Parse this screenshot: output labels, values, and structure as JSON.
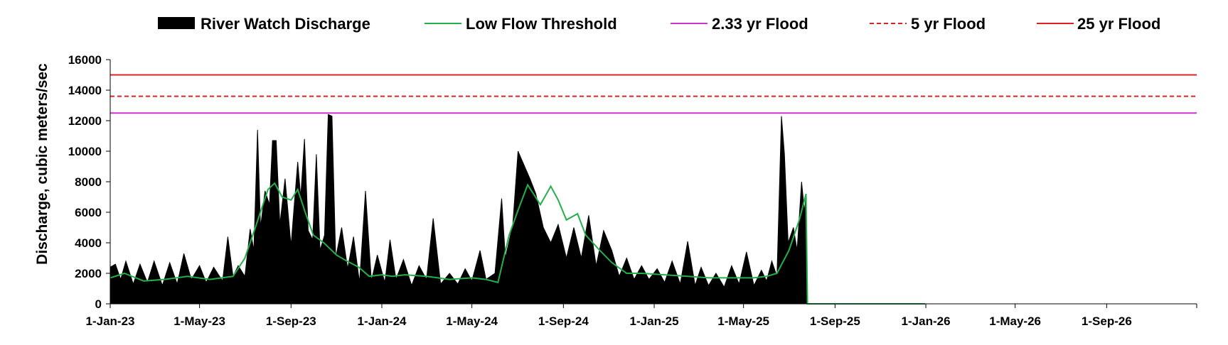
{
  "chart_data": {
    "type": "area",
    "title": "",
    "xlabel": "",
    "ylabel": "Discharge, cubic meters/sec",
    "ylim": [
      0,
      16000
    ],
    "yticks": [
      0,
      2000,
      4000,
      6000,
      8000,
      10000,
      12000,
      14000,
      16000
    ],
    "ytick_labels": [
      "0",
      "2000",
      "4000",
      "6000",
      "8000",
      "10000",
      "12000",
      "14000",
      "16000"
    ],
    "xlim": [
      "2023-01-01",
      "2026-12-31"
    ],
    "xticks": [
      "2023-01-01",
      "2023-05-01",
      "2023-09-01",
      "2024-01-01",
      "2024-05-01",
      "2024-09-01",
      "2025-01-01",
      "2025-05-01",
      "2025-09-01",
      "2026-01-01",
      "2026-05-01",
      "2026-09-01"
    ],
    "xtick_labels": [
      "1-Jan-23",
      "1-May-23",
      "1-Sep-23",
      "1-Jan-24",
      "1-May-24",
      "1-Sep-24",
      "1-Jan-25",
      "1-May-25",
      "1-Sep-25",
      "1-Jan-26",
      "1-May-26",
      "1-Sep-26"
    ],
    "grid": false,
    "legend_position": "top",
    "series": [
      {
        "name": "River Watch Discharge",
        "kind": "area",
        "color": "#000000",
        "points": [
          [
            "2023-01-01",
            2400
          ],
          [
            "2023-01-08",
            2600
          ],
          [
            "2023-01-15",
            1600
          ],
          [
            "2023-01-22",
            2800
          ],
          [
            "2023-02-01",
            1300
          ],
          [
            "2023-02-10",
            2600
          ],
          [
            "2023-02-20",
            1400
          ],
          [
            "2023-03-01",
            2800
          ],
          [
            "2023-03-12",
            1200
          ],
          [
            "2023-03-22",
            2700
          ],
          [
            "2023-04-01",
            1300
          ],
          [
            "2023-04-10",
            3300
          ],
          [
            "2023-04-20",
            1600
          ],
          [
            "2023-05-01",
            2500
          ],
          [
            "2023-05-10",
            1400
          ],
          [
            "2023-05-20",
            2400
          ],
          [
            "2023-06-01",
            1500
          ],
          [
            "2023-06-08",
            4400
          ],
          [
            "2023-06-15",
            1800
          ],
          [
            "2023-06-22",
            2500
          ],
          [
            "2023-07-01",
            1800
          ],
          [
            "2023-07-08",
            4900
          ],
          [
            "2023-07-13",
            3500
          ],
          [
            "2023-07-18",
            11400
          ],
          [
            "2023-07-22",
            5000
          ],
          [
            "2023-07-28",
            7400
          ],
          [
            "2023-08-03",
            6500
          ],
          [
            "2023-08-07",
            10700
          ],
          [
            "2023-08-12",
            10700
          ],
          [
            "2023-08-17",
            5200
          ],
          [
            "2023-08-24",
            8200
          ],
          [
            "2023-09-01",
            3800
          ],
          [
            "2023-09-05",
            6300
          ],
          [
            "2023-09-10",
            9300
          ],
          [
            "2023-09-14",
            7000
          ],
          [
            "2023-09-19",
            10800
          ],
          [
            "2023-09-24",
            4800
          ],
          [
            "2023-09-30",
            4200
          ],
          [
            "2023-10-05",
            9800
          ],
          [
            "2023-10-10",
            3500
          ],
          [
            "2023-10-16",
            4500
          ],
          [
            "2023-10-21",
            12400
          ],
          [
            "2023-10-26",
            12300
          ],
          [
            "2023-10-31",
            3000
          ],
          [
            "2023-11-08",
            5000
          ],
          [
            "2023-11-16",
            2300
          ],
          [
            "2023-11-24",
            4400
          ],
          [
            "2023-12-02",
            1400
          ],
          [
            "2023-12-10",
            7400
          ],
          [
            "2023-12-18",
            1500
          ],
          [
            "2023-12-26",
            3200
          ],
          [
            "2024-01-05",
            1400
          ],
          [
            "2024-01-12",
            4200
          ],
          [
            "2024-01-20",
            1600
          ],
          [
            "2024-01-30",
            2900
          ],
          [
            "2024-02-10",
            1200
          ],
          [
            "2024-02-20",
            2500
          ],
          [
            "2024-03-01",
            1600
          ],
          [
            "2024-03-10",
            5600
          ],
          [
            "2024-03-20",
            1300
          ],
          [
            "2024-04-01",
            2000
          ],
          [
            "2024-04-12",
            1300
          ],
          [
            "2024-04-22",
            2300
          ],
          [
            "2024-05-01",
            1500
          ],
          [
            "2024-05-12",
            3500
          ],
          [
            "2024-05-20",
            1600
          ],
          [
            "2024-06-01",
            2000
          ],
          [
            "2024-06-10",
            6900
          ],
          [
            "2024-06-15",
            3000
          ],
          [
            "2024-06-25",
            5200
          ],
          [
            "2024-07-02",
            10000
          ],
          [
            "2024-07-10",
            9100
          ],
          [
            "2024-07-18",
            8200
          ],
          [
            "2024-07-26",
            7200
          ],
          [
            "2024-08-05",
            5000
          ],
          [
            "2024-08-15",
            4000
          ],
          [
            "2024-08-25",
            5200
          ],
          [
            "2024-09-05",
            3000
          ],
          [
            "2024-09-15",
            5000
          ],
          [
            "2024-09-25",
            3000
          ],
          [
            "2024-10-05",
            5800
          ],
          [
            "2024-10-15",
            2500
          ],
          [
            "2024-10-25",
            4800
          ],
          [
            "2024-11-05",
            3500
          ],
          [
            "2024-11-15",
            1800
          ],
          [
            "2024-11-25",
            3000
          ],
          [
            "2024-12-05",
            1600
          ],
          [
            "2024-12-15",
            2500
          ],
          [
            "2024-12-25",
            1600
          ],
          [
            "2025-01-05",
            2300
          ],
          [
            "2025-01-15",
            1400
          ],
          [
            "2025-01-25",
            2800
          ],
          [
            "2025-02-05",
            1300
          ],
          [
            "2025-02-15",
            4100
          ],
          [
            "2025-02-25",
            1200
          ],
          [
            "2025-03-05",
            2400
          ],
          [
            "2025-03-15",
            1200
          ],
          [
            "2025-03-25",
            2000
          ],
          [
            "2025-04-05",
            1100
          ],
          [
            "2025-04-15",
            2500
          ],
          [
            "2025-04-25",
            1300
          ],
          [
            "2025-05-05",
            3400
          ],
          [
            "2025-05-15",
            1200
          ],
          [
            "2025-05-25",
            2200
          ],
          [
            "2025-06-01",
            1500
          ],
          [
            "2025-06-08",
            2800
          ],
          [
            "2025-06-15",
            1800
          ],
          [
            "2025-06-21",
            12300
          ],
          [
            "2025-06-25",
            9800
          ],
          [
            "2025-06-30",
            4000
          ],
          [
            "2025-07-07",
            5000
          ],
          [
            "2025-07-12",
            3500
          ],
          [
            "2025-07-18",
            8000
          ],
          [
            "2025-07-22",
            6000
          ],
          [
            "2025-07-24",
            7200
          ],
          [
            "2025-07-26",
            0
          ],
          [
            "2026-12-31",
            0
          ]
        ]
      },
      {
        "name": "Low Flow Threshold",
        "kind": "line",
        "color": "#22b04b",
        "points": [
          [
            "2023-01-01",
            1700
          ],
          [
            "2023-01-20",
            2000
          ],
          [
            "2023-02-15",
            1500
          ],
          [
            "2023-03-15",
            1600
          ],
          [
            "2023-04-15",
            1800
          ],
          [
            "2023-05-15",
            1600
          ],
          [
            "2023-06-15",
            1800
          ],
          [
            "2023-07-01",
            3000
          ],
          [
            "2023-07-15",
            5000
          ],
          [
            "2023-08-01",
            7500
          ],
          [
            "2023-08-10",
            7900
          ],
          [
            "2023-08-20",
            7000
          ],
          [
            "2023-09-01",
            6800
          ],
          [
            "2023-09-10",
            7500
          ],
          [
            "2023-09-20",
            6000
          ],
          [
            "2023-10-01",
            4500
          ],
          [
            "2023-10-15",
            4000
          ],
          [
            "2023-11-01",
            3200
          ],
          [
            "2023-11-15",
            2800
          ],
          [
            "2023-12-01",
            2400
          ],
          [
            "2023-12-15",
            1800
          ],
          [
            "2024-01-01",
            1900
          ],
          [
            "2024-01-15",
            1800
          ],
          [
            "2024-02-01",
            1900
          ],
          [
            "2024-03-01",
            1800
          ],
          [
            "2024-04-01",
            1600
          ],
          [
            "2024-05-01",
            1700
          ],
          [
            "2024-05-20",
            1600
          ],
          [
            "2024-06-05",
            1400
          ],
          [
            "2024-06-20",
            4500
          ],
          [
            "2024-07-01",
            6000
          ],
          [
            "2024-07-15",
            7800
          ],
          [
            "2024-08-01",
            6500
          ],
          [
            "2024-08-15",
            7700
          ],
          [
            "2024-08-25",
            6800
          ],
          [
            "2024-09-05",
            5500
          ],
          [
            "2024-09-20",
            5900
          ],
          [
            "2024-10-01",
            4500
          ],
          [
            "2024-10-20",
            3500
          ],
          [
            "2024-11-05",
            2700
          ],
          [
            "2024-11-25",
            2000
          ],
          [
            "2024-12-15",
            2000
          ],
          [
            "2025-01-15",
            1900
          ],
          [
            "2025-02-15",
            1800
          ],
          [
            "2025-03-15",
            1700
          ],
          [
            "2025-04-15",
            1700
          ],
          [
            "2025-05-15",
            1700
          ],
          [
            "2025-06-01",
            1800
          ],
          [
            "2025-06-15",
            2000
          ],
          [
            "2025-07-01",
            3500
          ],
          [
            "2025-07-15",
            5500
          ],
          [
            "2025-07-24",
            7200
          ],
          [
            "2025-07-26",
            0
          ],
          [
            "2025-12-31",
            0
          ]
        ]
      },
      {
        "name": "2.33 yr Flood",
        "kind": "hline",
        "color": "#cc33cc",
        "dash": false,
        "value": 12500
      },
      {
        "name": "5 yr Flood",
        "kind": "hline",
        "color": "#e02020",
        "dash": true,
        "value": 13600
      },
      {
        "name": "25 yr Flood",
        "kind": "hline",
        "color": "#e02020",
        "dash": false,
        "value": 15000
      }
    ]
  }
}
